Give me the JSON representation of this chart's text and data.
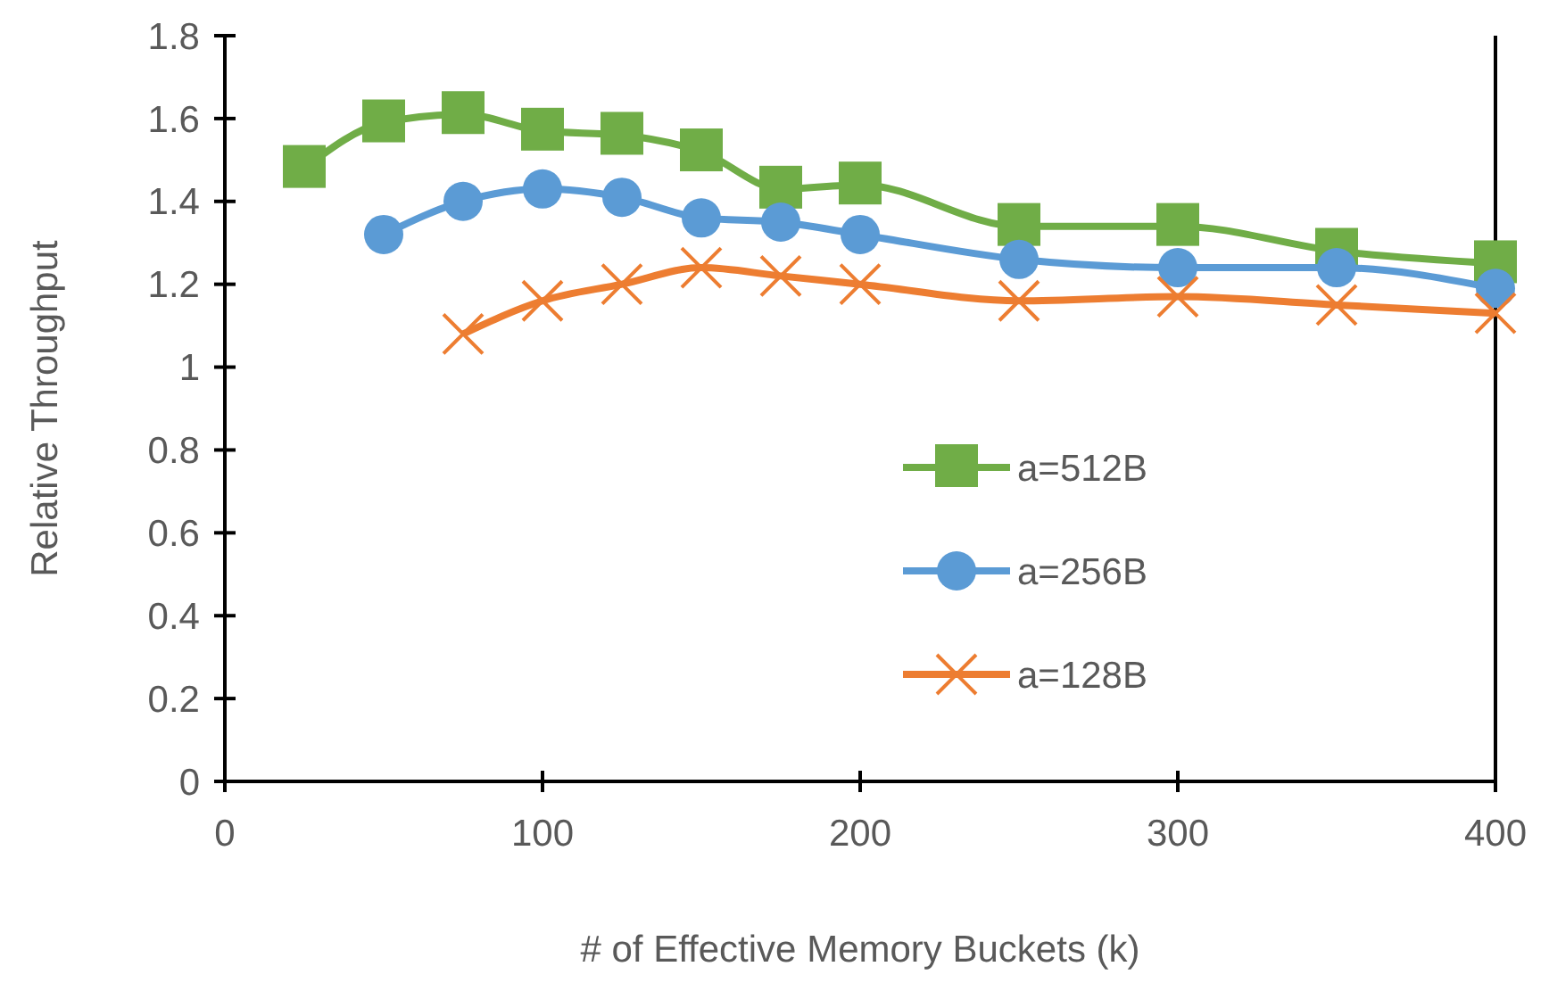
{
  "chart_data": {
    "type": "line",
    "xlabel": "# of Effective Memory Buckets (k)",
    "ylabel": "Relative Throughput",
    "xlim": [
      0,
      400
    ],
    "xticks": [
      0,
      100,
      200,
      300,
      400
    ],
    "ylim": [
      0,
      1.8
    ],
    "yticks": [
      0,
      0.2,
      0.4,
      0.6,
      0.8,
      1,
      1.2,
      1.4,
      1.6,
      1.8
    ],
    "grid": false,
    "legend": "right",
    "series": [
      {
        "name": "a=512B",
        "color": "#70ad47",
        "marker": "square",
        "x": [
          25,
          50,
          75,
          100,
          125,
          150,
          175,
          200,
          250,
          300,
          350,
          400
        ],
        "values": [
          1.48,
          1.59,
          1.61,
          1.57,
          1.56,
          1.52,
          1.43,
          1.44,
          1.34,
          1.34,
          1.28,
          1.25
        ]
      },
      {
        "name": "a=256B",
        "color": "#5b9bd5",
        "marker": "circle",
        "x": [
          50,
          75,
          100,
          125,
          150,
          175,
          200,
          250,
          300,
          350,
          400
        ],
        "values": [
          1.32,
          1.4,
          1.43,
          1.41,
          1.36,
          1.35,
          1.32,
          1.26,
          1.24,
          1.24,
          1.19
        ]
      },
      {
        "name": "a=128B",
        "color": "#ed7d31",
        "marker": "cross",
        "x": [
          75,
          100,
          125,
          150,
          175,
          200,
          250,
          300,
          350,
          400
        ],
        "values": [
          1.08,
          1.16,
          1.2,
          1.24,
          1.22,
          1.2,
          1.16,
          1.17,
          1.15,
          1.13
        ]
      }
    ]
  }
}
